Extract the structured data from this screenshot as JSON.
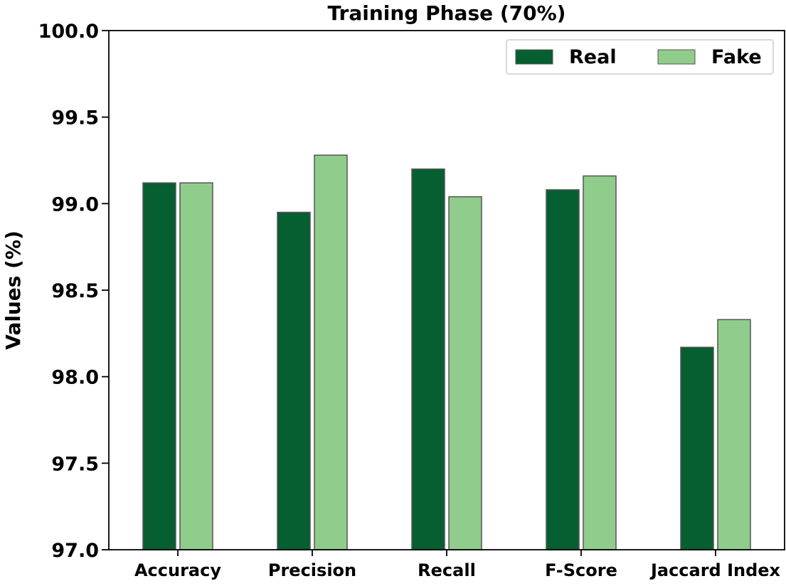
{
  "chart_data": {
    "type": "bar",
    "title": "Training Phase (70%)",
    "xlabel": "",
    "ylabel": "Values (%)",
    "ylim": [
      97.0,
      100.0
    ],
    "yticks": [
      97.0,
      97.5,
      98.0,
      98.5,
      99.0,
      99.5,
      100.0
    ],
    "categories": [
      "Accuracy",
      "Precision",
      "Recall",
      "F-Score",
      "Jaccard Index"
    ],
    "series": [
      {
        "name": "Real",
        "color": "#055f31",
        "values": [
          99.12,
          98.95,
          99.2,
          99.08,
          98.17
        ]
      },
      {
        "name": "Fake",
        "color": "#90cc8c",
        "values": [
          99.12,
          99.28,
          99.04,
          99.16,
          98.33
        ]
      }
    ],
    "legend": {
      "position": "top-right",
      "columns": 2
    },
    "grid": false
  }
}
